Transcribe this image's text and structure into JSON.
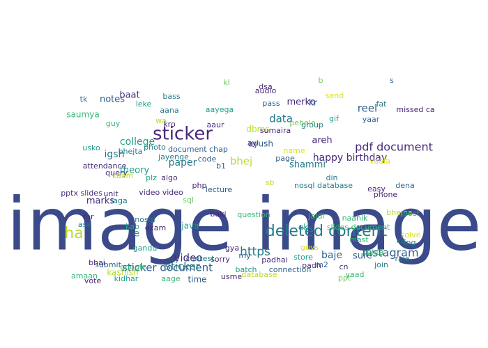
{
  "palette": {
    "p0": "#3b4a8a",
    "p1": "#46287a",
    "p2": "#31608d",
    "p3": "#257b8a",
    "p4": "#1f9e89",
    "p5": "#35b779",
    "p6": "#6cce59",
    "p7": "#b5dd2b",
    "p8": "#dce319"
  },
  "words": [
    {
      "text": "image image",
      "color": "p0"
    },
    {
      "text": "sticker",
      "color": "p1"
    },
    {
      "text": "deleted content",
      "color": "p3"
    },
    {
      "text": "instagram",
      "color": "p2"
    },
    {
      "text": "pdf document",
      "color": "p1"
    },
    {
      "text": "happy birthday",
      "color": "p1"
    },
    {
      "text": "ha",
      "color": "p7"
    },
    {
      "text": "sticker document",
      "color": "p2"
    },
    {
      "text": "https",
      "color": "p3"
    },
    {
      "text": "baje",
      "color": "p2"
    },
    {
      "text": "sure",
      "color": "p2"
    },
    {
      "text": "data",
      "color": "p3"
    },
    {
      "text": "reel",
      "color": "p2"
    },
    {
      "text": "video",
      "color": "p1"
    },
    {
      "text": "college",
      "color": "p4"
    },
    {
      "text": "igsh",
      "color": "p3"
    },
    {
      "text": "theory",
      "color": "p4"
    },
    {
      "text": "paper",
      "color": "p3"
    },
    {
      "text": "bhej",
      "color": "p7"
    },
    {
      "text": "shammi",
      "color": "p3"
    },
    {
      "text": "marks",
      "color": "p1"
    },
    {
      "text": "notes",
      "color": "p2"
    },
    {
      "text": "baat",
      "color": "p1"
    },
    {
      "text": "merko",
      "color": "p1"
    },
    {
      "text": "areh",
      "color": "p1"
    },
    {
      "text": "ayush",
      "color": "p2"
    },
    {
      "text": "dbms",
      "color": "p7"
    },
    {
      "text": "sticker",
      "color": "p3"
    },
    {
      "text": "time",
      "color": "p2"
    },
    {
      "text": "kashish",
      "color": "p7"
    },
    {
      "text": "java",
      "color": "p4"
    },
    {
      "text": "e",
      "color": "p4"
    },
    {
      "text": "ek",
      "color": "p4"
    },
    {
      "text": "kr",
      "color": "p2"
    },
    {
      "text": "saumya",
      "color": "p5"
    },
    {
      "text": "guy",
      "color": "p5"
    },
    {
      "text": "aana",
      "color": "p3"
    },
    {
      "text": "aayega",
      "color": "p4"
    },
    {
      "text": "bass",
      "color": "p3"
    },
    {
      "text": "leke",
      "color": "p4"
    },
    {
      "text": "tk",
      "color": "p3"
    },
    {
      "text": "kl",
      "color": "p6"
    },
    {
      "text": "dsa",
      "color": "p1"
    },
    {
      "text": "audio",
      "color": "p1"
    },
    {
      "text": "pass",
      "color": "p2"
    },
    {
      "text": "b",
      "color": "p6"
    },
    {
      "text": "send",
      "color": "p8"
    },
    {
      "text": "s",
      "color": "p2"
    },
    {
      "text": "fat",
      "color": "p3"
    },
    {
      "text": "missed ca",
      "color": "p1"
    },
    {
      "text": "yaar",
      "color": "p2"
    },
    {
      "text": "gif",
      "color": "p4"
    },
    {
      "text": "group",
      "color": "p3"
    },
    {
      "text": "pehele",
      "color": "p6"
    },
    {
      "text": "sumaira",
      "color": "p1"
    },
    {
      "text": "wa",
      "color": "p7"
    },
    {
      "text": "kro",
      "color": "p1"
    },
    {
      "text": "aaur",
      "color": "p1"
    },
    {
      "text": "ayi",
      "color": "p1"
    },
    {
      "text": "usko",
      "color": "p4"
    },
    {
      "text": "bhejta",
      "color": "p3"
    },
    {
      "text": "photo",
      "color": "p3"
    },
    {
      "text": "document chap",
      "color": "p2"
    },
    {
      "text": "name",
      "color": "p8"
    },
    {
      "text": "jayenge",
      "color": "p3"
    },
    {
      "text": "code",
      "color": "p2"
    },
    {
      "text": "page",
      "color": "p2"
    },
    {
      "text": "vaala",
      "color": "p8"
    },
    {
      "text": "attendance",
      "color": "p1"
    },
    {
      "text": "b1",
      "color": "p2"
    },
    {
      "text": "query",
      "color": "p1"
    },
    {
      "text": "kaam",
      "color": "p7"
    },
    {
      "text": "plz",
      "color": "p4"
    },
    {
      "text": "algo",
      "color": "p1"
    },
    {
      "text": "din",
      "color": "p3"
    },
    {
      "text": "sb",
      "color": "p7"
    },
    {
      "text": "nosql database",
      "color": "p3"
    },
    {
      "text": "easy",
      "color": "p1"
    },
    {
      "text": "dena",
      "color": "p2"
    },
    {
      "text": "phone",
      "color": "p1"
    },
    {
      "text": "pptx slides",
      "color": "p1"
    },
    {
      "text": "unit",
      "color": "p1"
    },
    {
      "text": "video video",
      "color": "p1"
    },
    {
      "text": "php",
      "color": "p1"
    },
    {
      "text": "lecture",
      "color": "p2"
    },
    {
      "text": "laga",
      "color": "p3"
    },
    {
      "text": "sql",
      "color": "p6"
    },
    {
      "text": "baki",
      "color": "p1"
    },
    {
      "text": "question",
      "color": "p5"
    },
    {
      "text": "jaldi",
      "color": "p5"
    },
    {
      "text": "bhejna",
      "color": "p7"
    },
    {
      "text": "post",
      "color": "p4"
    },
    {
      "text": "naahik",
      "color": "p5"
    },
    {
      "text": "for",
      "color": "p1"
    },
    {
      "text": "ass",
      "color": "p3"
    },
    {
      "text": "nosql",
      "color": "p3"
    },
    {
      "text": "exam",
      "color": "p1"
    },
    {
      "text": "slides document",
      "color": "p5"
    },
    {
      "text": "solve",
      "color": "p8"
    },
    {
      "text": "kab",
      "color": "p4"
    },
    {
      "text": "mast",
      "color": "p5"
    },
    {
      "text": "ka",
      "color": "p3"
    },
    {
      "text": "gandu",
      "color": "p4"
    },
    {
      "text": "gya",
      "color": "p1"
    },
    {
      "text": "guys",
      "color": "p8"
    },
    {
      "text": "rehta",
      "color": "p5"
    },
    {
      "text": "ing",
      "color": "p3"
    },
    {
      "text": "raja",
      "color": "p3"
    },
    {
      "text": "bhai",
      "color": "p1"
    },
    {
      "text": "submit",
      "color": "p2"
    },
    {
      "text": "google",
      "color": "p5"
    },
    {
      "text": "contest",
      "color": "p3"
    },
    {
      "text": "sorry",
      "color": "p1"
    },
    {
      "text": "my",
      "color": "p2"
    },
    {
      "text": "padhai",
      "color": "p1"
    },
    {
      "text": "store",
      "color": "p4"
    },
    {
      "text": "padh",
      "color": "p1"
    },
    {
      "text": "m2",
      "color": "p2"
    },
    {
      "text": "cn",
      "color": "p1"
    },
    {
      "text": "join",
      "color": "p3"
    },
    {
      "text": "batch",
      "color": "p4"
    },
    {
      "text": "connection",
      "color": "p2"
    },
    {
      "text": "amaan",
      "color": "p5"
    },
    {
      "text": "kidhar",
      "color": "p4"
    },
    {
      "text": "vote",
      "color": "p1"
    },
    {
      "text": "aage",
      "color": "p5"
    },
    {
      "text": "usme",
      "color": "p1"
    },
    {
      "text": "database",
      "color": "p7"
    },
    {
      "text": "ppt",
      "color": "p6"
    },
    {
      "text": "yaad",
      "color": "p5"
    }
  ]
}
